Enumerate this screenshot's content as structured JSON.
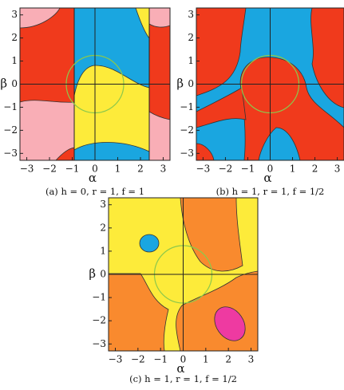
{
  "figure": {
    "panels": [
      {
        "caption": "(a) h = 0, r = 1, f = 1",
        "xlabel": "α",
        "ylabel": "β",
        "xlim": [
          -3.3,
          3.3
        ],
        "ylim": [
          -3.3,
          3.3
        ],
        "xticks": [
          {
            "value": -3,
            "label": "−3"
          },
          {
            "value": -2,
            "label": "−2"
          },
          {
            "value": -1,
            "label": "−1"
          },
          0,
          1,
          2,
          3
        ],
        "yticks": [
          {
            "value": -3,
            "label": "−3"
          },
          {
            "value": -2,
            "label": "−2"
          },
          {
            "value": -1,
            "label": "−1"
          },
          0,
          1,
          2,
          3
        ]
      },
      {
        "caption": "(b) h = 1, r = 1, f = 1/2",
        "xlabel": "α",
        "ylabel": "β",
        "xlim": [
          -3.3,
          3.3
        ],
        "ylim": [
          -3.3,
          3.3
        ],
        "xticks": [
          {
            "value": -3,
            "label": "−3"
          },
          {
            "value": -2,
            "label": "−2"
          },
          {
            "value": -1,
            "label": "−1"
          },
          0,
          1,
          2,
          3
        ],
        "yticks": [
          {
            "value": -3,
            "label": "−3"
          },
          {
            "value": -2,
            "label": "−2"
          },
          {
            "value": -1,
            "label": "−1"
          },
          0,
          1,
          2,
          3
        ]
      },
      {
        "caption": "(c) h = 1, r = 1, f = 1/2",
        "xlabel": "α",
        "ylabel": "β",
        "xlim": [
          -3.3,
          3.3
        ],
        "ylim": [
          -3.3,
          3.3
        ],
        "xticks": [
          {
            "value": -3,
            "label": "−3"
          },
          {
            "value": -2,
            "label": "−2"
          },
          {
            "value": -1,
            "label": "−1"
          },
          0,
          1,
          2,
          3
        ],
        "yticks": [
          {
            "value": -3,
            "label": "−3"
          },
          {
            "value": -2,
            "label": "−2"
          },
          {
            "value": -1,
            "label": "−1"
          },
          0,
          1,
          2,
          3
        ]
      }
    ]
  }
}
